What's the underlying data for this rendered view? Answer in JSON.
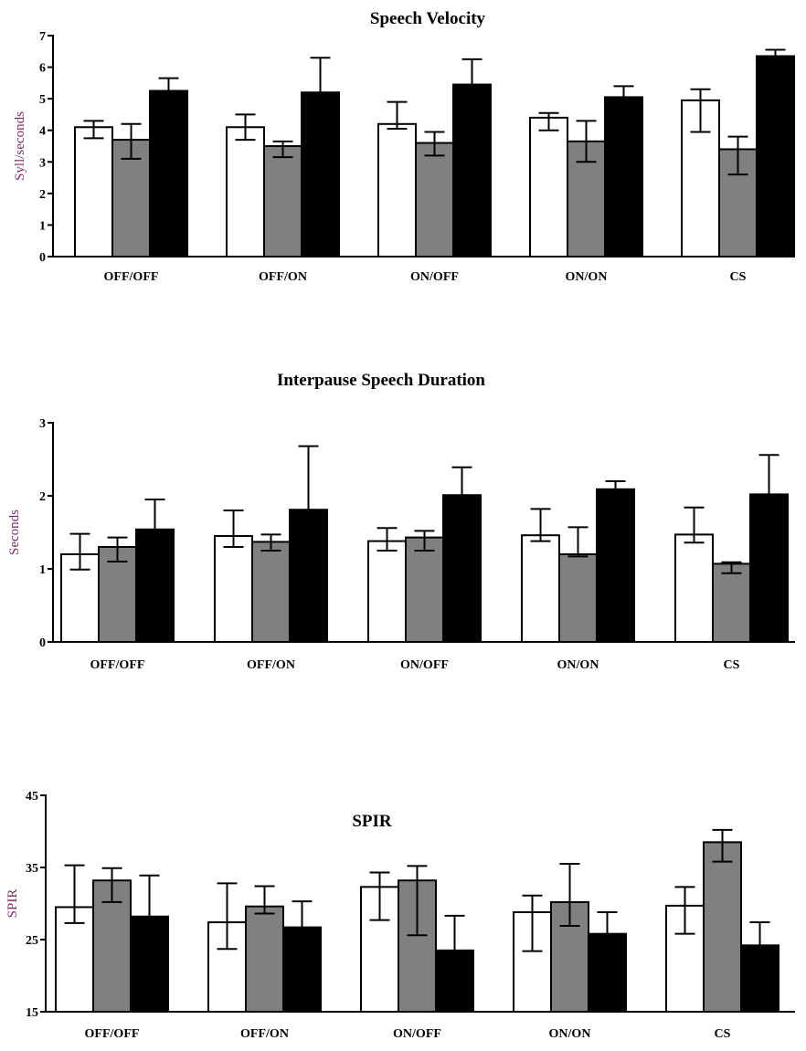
{
  "colors": {
    "series": [
      "#ffffff",
      "#808080",
      "#000000"
    ],
    "axis_label": "#7a2a6a",
    "stroke": "#000000"
  },
  "chart_data": [
    {
      "type": "bar",
      "title": "Speech Velocity",
      "ylabel": "Syll/seconds",
      "xlabel": "",
      "ylim": [
        0,
        7
      ],
      "yticks": [
        0,
        1,
        2,
        3,
        4,
        5,
        6,
        7
      ],
      "categories": [
        "OFF/OFF",
        "OFF/ON",
        "ON/OFF",
        "ON/ON",
        "CS"
      ],
      "series": [
        {
          "values": [
            4.1,
            4.1,
            4.2,
            4.4,
            4.95
          ],
          "err_low": [
            3.75,
            3.7,
            4.05,
            4.0,
            3.95
          ],
          "err_high": [
            4.3,
            4.5,
            4.9,
            4.55,
            5.3
          ]
        },
        {
          "values": [
            3.7,
            3.5,
            3.6,
            3.65,
            3.4
          ],
          "err_low": [
            3.1,
            3.15,
            3.2,
            3.0,
            2.6
          ],
          "err_high": [
            4.2,
            3.65,
            3.95,
            4.3,
            3.8
          ]
        },
        {
          "values": [
            5.25,
            5.2,
            5.45,
            5.05,
            6.35
          ],
          "err_low": [
            5.25,
            5.2,
            5.45,
            5.05,
            6.35
          ],
          "err_high": [
            5.65,
            6.3,
            6.25,
            5.4,
            6.55
          ]
        }
      ],
      "grid": false,
      "legend": "none"
    },
    {
      "type": "bar",
      "title": "Interpause Speech Duration",
      "ylabel": "Seconds",
      "xlabel": "",
      "ylim": [
        0,
        3
      ],
      "yticks": [
        0,
        1,
        2,
        3
      ],
      "categories": [
        "OFF/OFF",
        "OFF/ON",
        "ON/OFF",
        "ON/ON",
        "CS"
      ],
      "series": [
        {
          "values": [
            1.2,
            1.45,
            1.38,
            1.46,
            1.47
          ],
          "err_low": [
            0.99,
            1.3,
            1.25,
            1.38,
            1.36
          ],
          "err_high": [
            1.48,
            1.8,
            1.56,
            1.82,
            1.84
          ]
        },
        {
          "values": [
            1.3,
            1.37,
            1.43,
            1.2,
            1.07
          ],
          "err_low": [
            1.1,
            1.25,
            1.25,
            1.17,
            0.94
          ],
          "err_high": [
            1.43,
            1.47,
            1.52,
            1.57,
            1.09
          ]
        },
        {
          "values": [
            1.54,
            1.81,
            2.01,
            2.09,
            2.02
          ],
          "err_low": [
            1.54,
            1.81,
            2.01,
            2.09,
            2.02
          ],
          "err_high": [
            1.95,
            2.68,
            2.39,
            2.2,
            2.56
          ]
        }
      ],
      "grid": false,
      "legend": "none"
    },
    {
      "type": "bar",
      "title": "SPIR",
      "ylabel": "SPIR",
      "xlabel": "",
      "ylim": [
        15,
        45
      ],
      "yticks": [
        15,
        25,
        35,
        45
      ],
      "categories": [
        "OFF/OFF",
        "OFF/ON",
        "ON/OFF",
        "ON/ON",
        "CS"
      ],
      "series": [
        {
          "values": [
            29.5,
            27.4,
            32.3,
            28.8,
            29.7
          ],
          "err_low": [
            27.3,
            23.7,
            27.7,
            23.4,
            25.8
          ],
          "err_high": [
            35.3,
            32.8,
            34.3,
            31.1,
            32.3
          ]
        },
        {
          "values": [
            33.2,
            29.6,
            33.2,
            30.2,
            38.5
          ],
          "err_low": [
            30.2,
            28.6,
            25.6,
            26.9,
            35.8
          ],
          "err_high": [
            34.9,
            32.4,
            35.2,
            35.5,
            40.2
          ]
        },
        {
          "values": [
            28.2,
            26.7,
            23.5,
            25.8,
            24.2
          ],
          "err_low": [
            28.2,
            26.7,
            23.5,
            25.8,
            24.2
          ],
          "err_high": [
            33.9,
            30.3,
            28.3,
            28.8,
            27.4
          ]
        }
      ],
      "grid": false,
      "legend": "none"
    }
  ]
}
